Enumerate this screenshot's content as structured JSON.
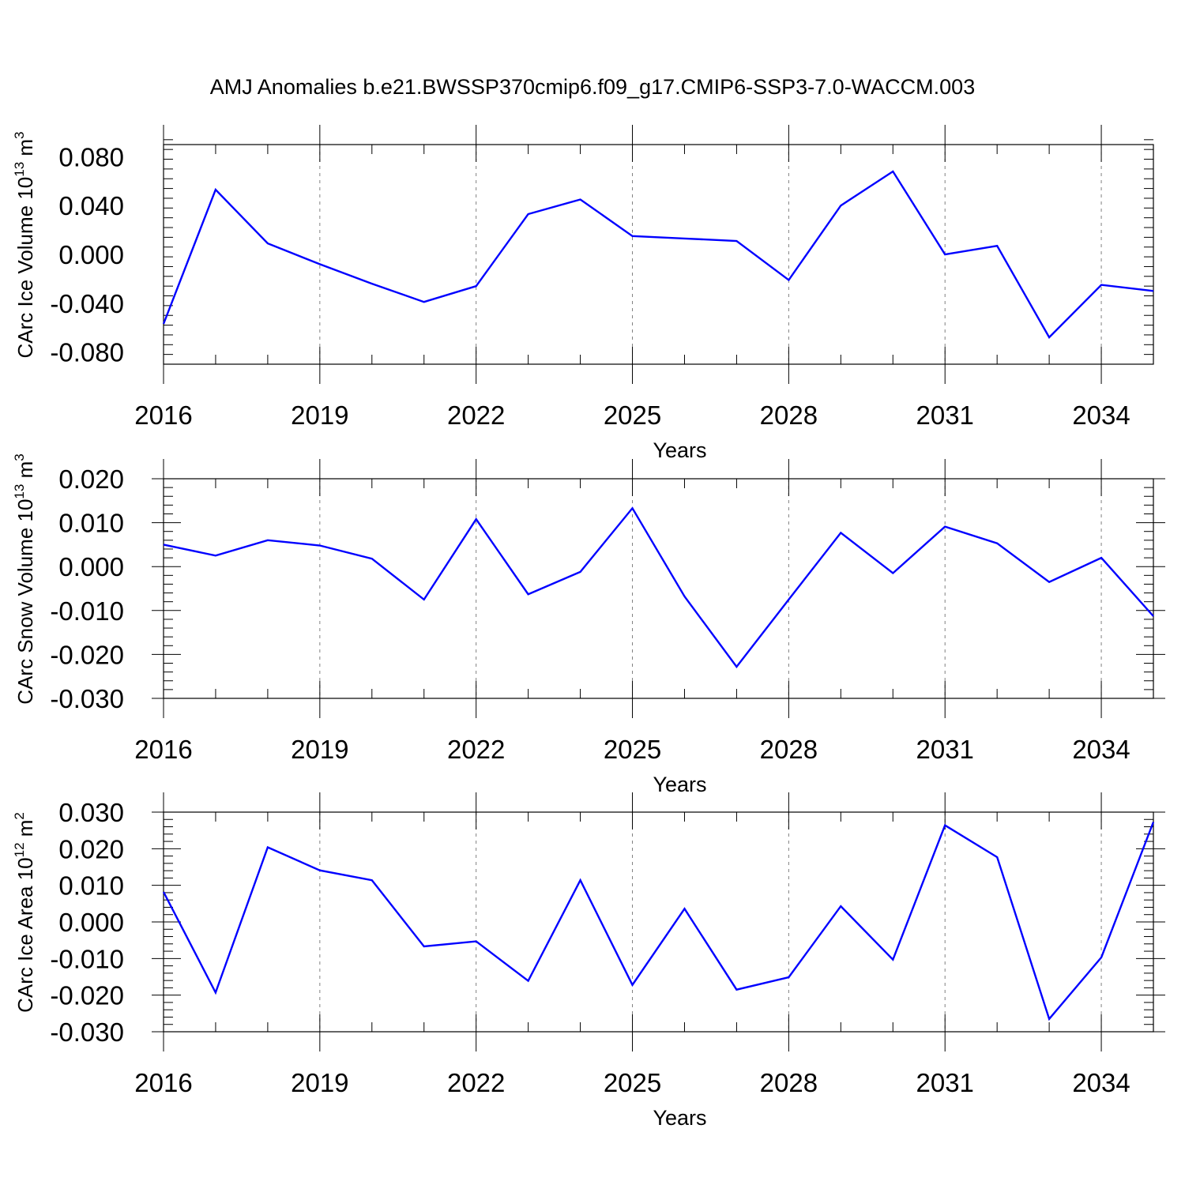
{
  "figure": {
    "title": "AMJ Anomalies b.e21.BWSSP370cmip6.f09_g17.CMIP6-SSP3-7.0-WACCM.003",
    "line_color": "#0000ff"
  },
  "chart_data": [
    {
      "type": "line",
      "title": "",
      "xlabel": "Years",
      "ylabel_main": "CArc Ice Volume 10",
      "ylabel_exp": "13",
      "ylabel_unit": " m",
      "ylabel_unit_exp": "3",
      "xlim": [
        2016,
        2035
      ],
      "ylim": [
        -0.09,
        0.09
      ],
      "xticks": [
        2016,
        2019,
        2022,
        2025,
        2028,
        2031,
        2034
      ],
      "xtick_labels": [
        "2016",
        "2019",
        "2022",
        "2025",
        "2028",
        "2031",
        "2034"
      ],
      "yticks": [
        -0.08,
        -0.04,
        0.0,
        0.04,
        0.08
      ],
      "ytick_labels": [
        "-0.080",
        "-0.040",
        "0.000",
        "0.040",
        "0.080"
      ],
      "grid": "dashed vertical at major x ticks",
      "x": [
        2016,
        2017,
        2018,
        2019,
        2020,
        2021,
        2022,
        2023,
        2024,
        2025,
        2026,
        2027,
        2028,
        2029,
        2030,
        2031,
        2032,
        2033,
        2034,
        2035
      ],
      "series": [
        {
          "name": "CArc Ice Volume",
          "values": [
            -0.057,
            0.053,
            0.009,
            -0.008,
            -0.024,
            -0.039,
            -0.026,
            0.033,
            0.045,
            0.015,
            0.013,
            0.011,
            -0.021,
            0.04,
            0.068,
            0.0,
            0.007,
            -0.068,
            -0.025,
            -0.03
          ]
        }
      ]
    },
    {
      "type": "line",
      "title": "",
      "xlabel": "Years",
      "ylabel_main": "CArc Snow Volume 10",
      "ylabel_exp": "13",
      "ylabel_unit": " m",
      "ylabel_unit_exp": "3",
      "xlim": [
        2016,
        2035
      ],
      "ylim": [
        -0.03,
        0.02
      ],
      "xticks": [
        2016,
        2019,
        2022,
        2025,
        2028,
        2031,
        2034
      ],
      "xtick_labels": [
        "2016",
        "2019",
        "2022",
        "2025",
        "2028",
        "2031",
        "2034"
      ],
      "yticks": [
        -0.03,
        -0.02,
        -0.01,
        0.0,
        0.01,
        0.02
      ],
      "ytick_labels": [
        "-0.030",
        "-0.020",
        "-0.010",
        "0.000",
        "0.010",
        "0.020"
      ],
      "grid": "dashed vertical at major x ticks",
      "x": [
        2016,
        2017,
        2018,
        2019,
        2020,
        2021,
        2022,
        2023,
        2024,
        2025,
        2026,
        2027,
        2028,
        2029,
        2030,
        2031,
        2032,
        2033,
        2034,
        2035
      ],
      "series": [
        {
          "name": "CArc Snow Volume",
          "values": [
            0.005,
            0.0025,
            0.006,
            0.0048,
            0.0018,
            -0.0075,
            0.0108,
            -0.0063,
            -0.0012,
            0.0133,
            -0.0068,
            -0.0228,
            -0.0075,
            0.0077,
            -0.0015,
            0.0091,
            0.0053,
            -0.0035,
            0.002,
            -0.0113
          ]
        }
      ]
    },
    {
      "type": "line",
      "title": "",
      "xlabel": "Years",
      "ylabel_main": "CArc Ice Area 10",
      "ylabel_exp": "12",
      "ylabel_unit": " m",
      "ylabel_unit_exp": "2",
      "xlim": [
        2016,
        2035
      ],
      "ylim": [
        -0.03,
        0.03
      ],
      "xticks": [
        2016,
        2019,
        2022,
        2025,
        2028,
        2031,
        2034
      ],
      "xtick_labels": [
        "2016",
        "2019",
        "2022",
        "2025",
        "2028",
        "2031",
        "2034"
      ],
      "yticks": [
        -0.03,
        -0.02,
        -0.01,
        0.0,
        0.01,
        0.02,
        0.03
      ],
      "ytick_labels": [
        "-0.030",
        "-0.020",
        "-0.010",
        "0.000",
        "0.010",
        "0.020",
        "0.030"
      ],
      "grid": "dashed vertical at major x ticks",
      "x": [
        2016,
        2017,
        2018,
        2019,
        2020,
        2021,
        2022,
        2023,
        2024,
        2025,
        2026,
        2027,
        2028,
        2029,
        2030,
        2031,
        2032,
        2033,
        2034,
        2035
      ],
      "series": [
        {
          "name": "CArc Ice Area",
          "values": [
            0.0082,
            -0.0193,
            0.0204,
            0.0141,
            0.0114,
            -0.0067,
            -0.0053,
            -0.0161,
            0.0114,
            -0.0172,
            0.0036,
            -0.0185,
            -0.0151,
            0.0043,
            -0.0103,
            0.0264,
            0.0177,
            -0.0265,
            -0.0097,
            0.0273
          ]
        }
      ]
    }
  ]
}
